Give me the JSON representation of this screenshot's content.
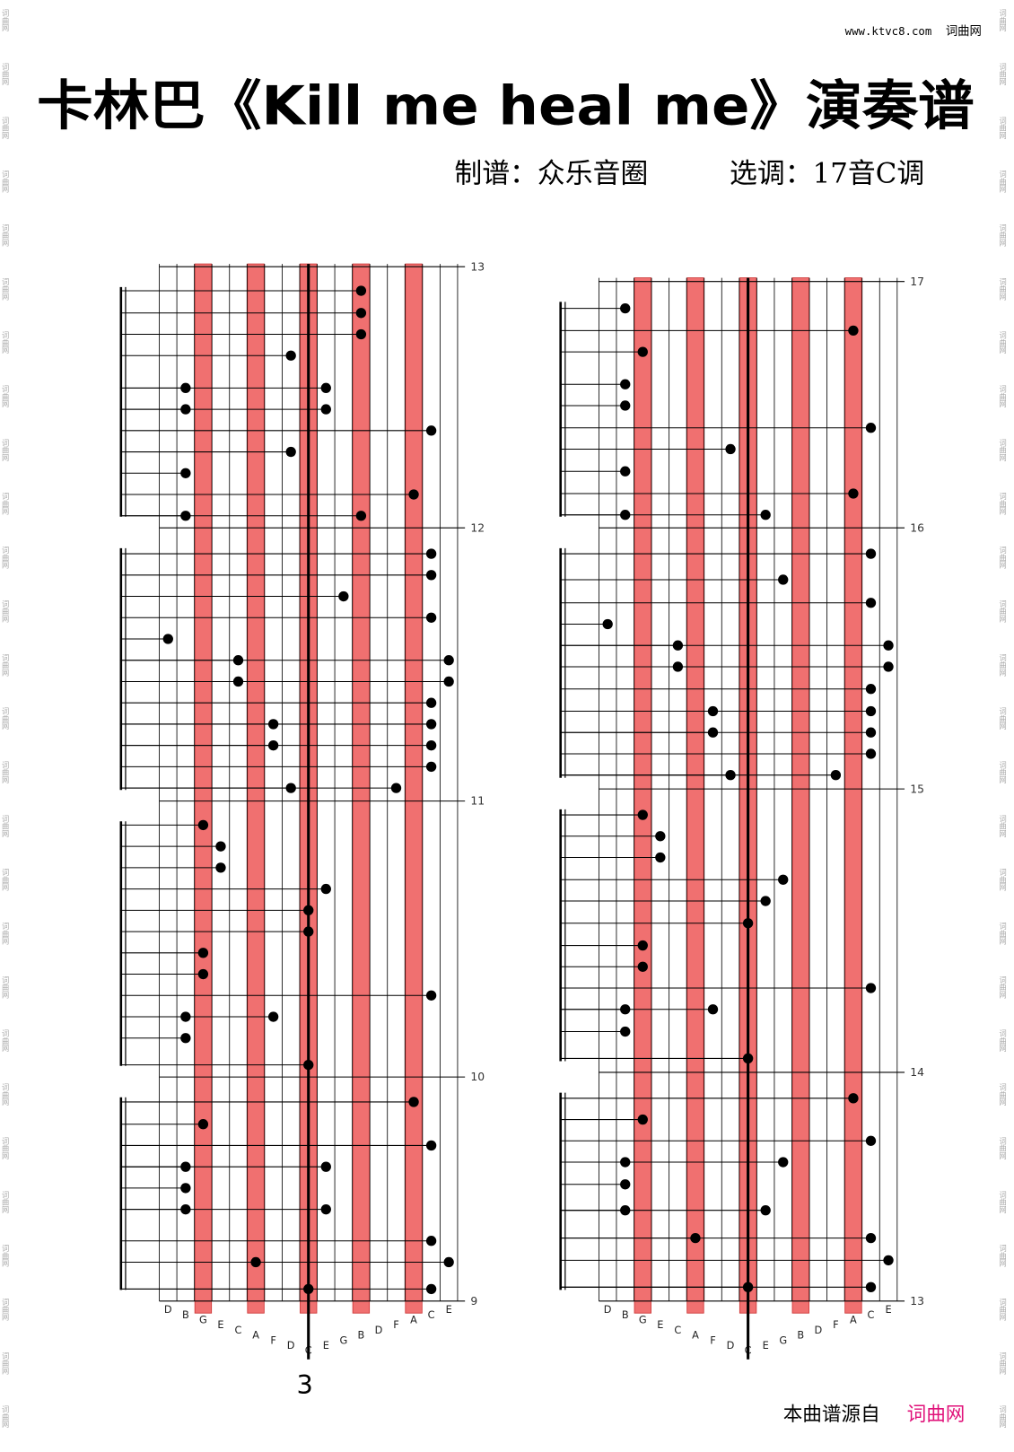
{
  "header": {
    "site": "www.ktvc8.com",
    "site_name": "词曲网"
  },
  "title": "卡林巴《Kill me heal me》演奏谱",
  "credits": {
    "arranger": "制谱：众乐音圈",
    "key": "选调：17音C调"
  },
  "margin_mark": "词曲网",
  "panels": [
    {
      "measures": [
        13,
        12,
        11,
        10,
        9
      ],
      "keys": [
        "D",
        "B",
        "G",
        "E",
        "C",
        "A",
        "F",
        "D",
        "C",
        "E",
        "G",
        "B",
        "D",
        "F",
        "A",
        "C",
        "E"
      ]
    },
    {
      "measures": [
        17,
        16,
        15,
        14,
        13
      ],
      "keys": [
        "D",
        "B",
        "G",
        "E",
        "C",
        "A",
        "F",
        "D",
        "C",
        "E",
        "G",
        "B",
        "D",
        "F",
        "A",
        "C",
        "E"
      ]
    }
  ],
  "page_number": "3",
  "footer": {
    "source": "本曲谱源自",
    "site_name": "词曲网"
  }
}
